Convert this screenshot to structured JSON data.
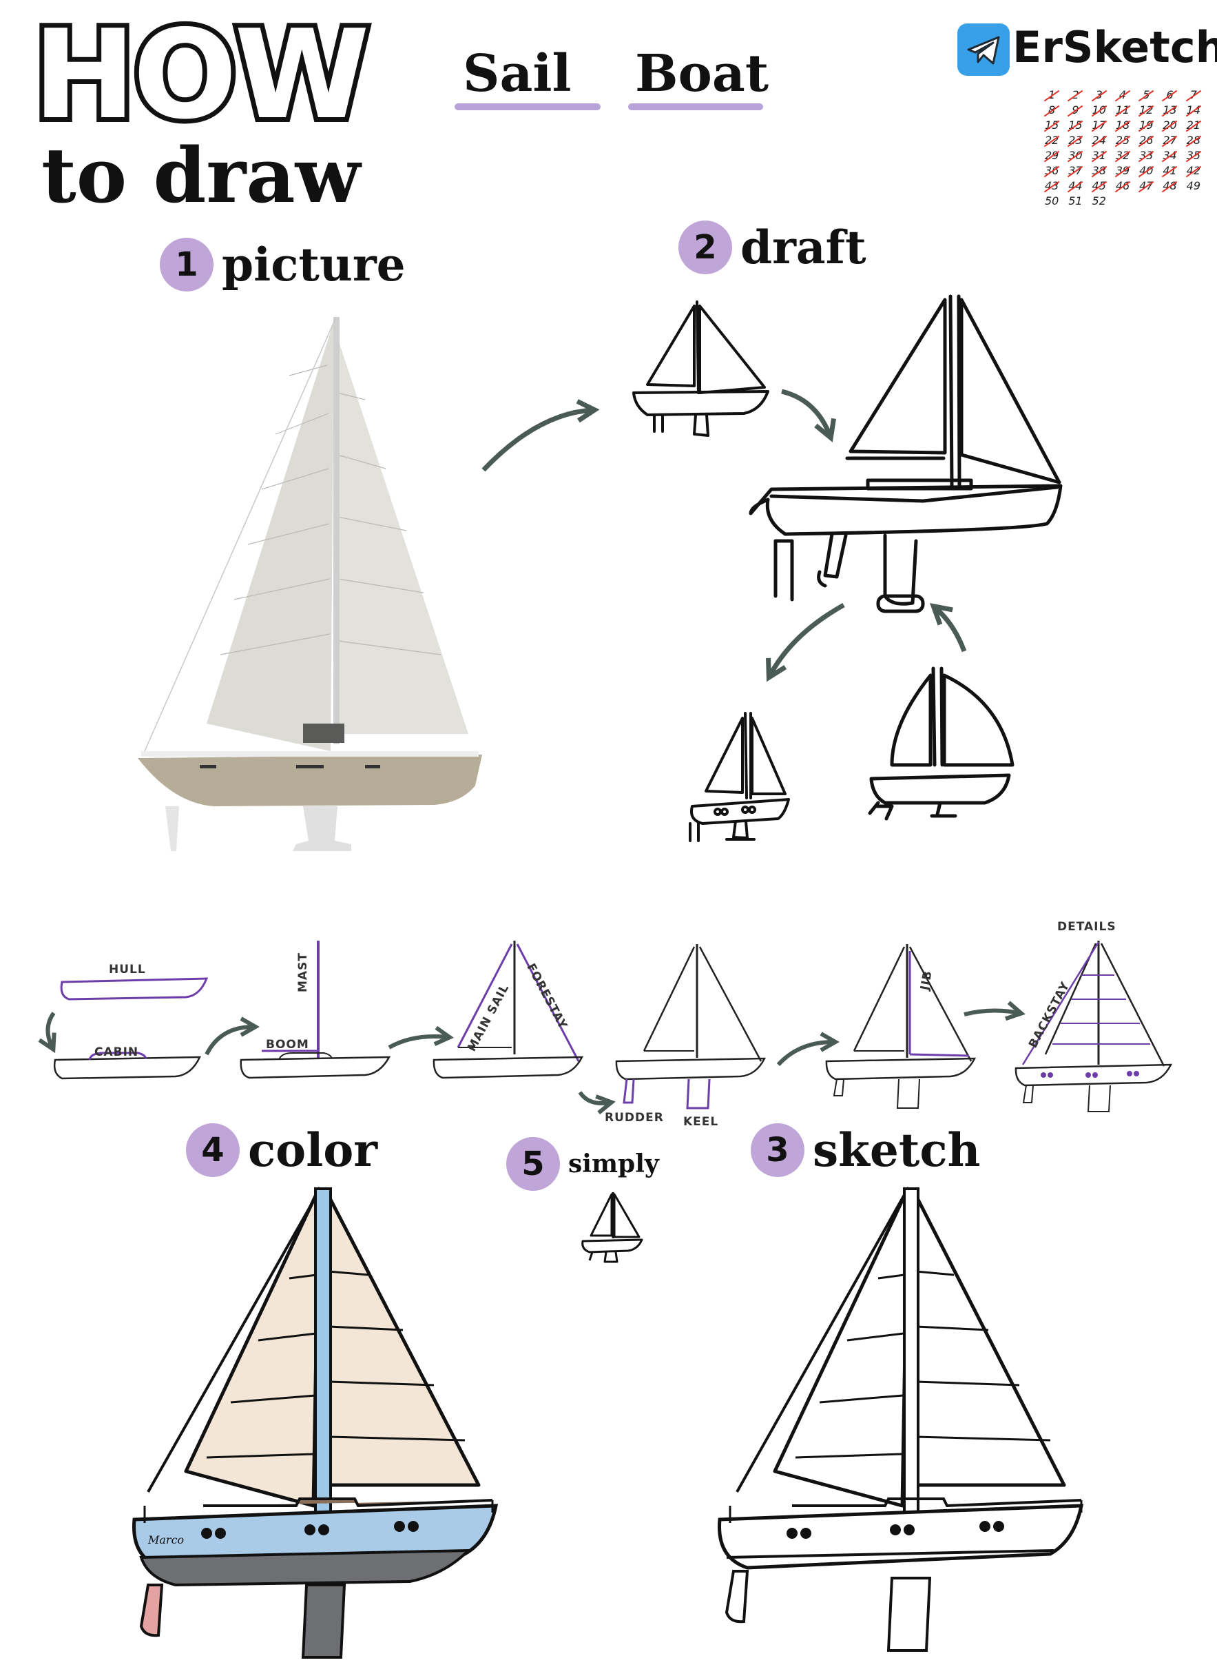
{
  "header": {
    "title_how": "HOW",
    "title_to_draw": "to draw",
    "subject_word1": "Sail",
    "subject_word2": "Boat",
    "brand": "ErSketch",
    "brand_icon": "telegram-icon"
  },
  "calendar": {
    "weeks": [
      "1",
      "2",
      "3",
      "4",
      "5",
      "6",
      "7",
      "8",
      "9",
      "10",
      "11",
      "12",
      "13",
      "14",
      "15",
      "15",
      "17",
      "18",
      "19",
      "20",
      "21",
      "22",
      "23",
      "24",
      "25",
      "26",
      "27",
      "28",
      "29",
      "30",
      "31",
      "32",
      "33",
      "34",
      "35",
      "36",
      "37",
      "38",
      "39",
      "40",
      "41",
      "42",
      "43",
      "44",
      "45",
      "46",
      "47",
      "48",
      "49",
      "50",
      "51",
      "52"
    ],
    "done_count": 48,
    "strike_color": "#e0332b"
  },
  "steps": {
    "s1": {
      "number": "1",
      "label": "picture"
    },
    "s2": {
      "number": "2",
      "label": "draft"
    },
    "s3": {
      "number": "3",
      "label": "sketch"
    },
    "s4": {
      "number": "4",
      "label": "color"
    },
    "s5": {
      "number": "5",
      "label": "simply"
    }
  },
  "parts": {
    "hull": "HULL",
    "cabin": "CABIN",
    "boom": "BOOM",
    "mast": "MAST",
    "main_sail": "MAIN SAIL",
    "forestay": "FORESTAY",
    "rudder": "RUDDER",
    "keel": "KEEL",
    "jib": "JIB",
    "backstay": "BACKSTAY",
    "details": "DETAILS"
  },
  "colors": {
    "accent": "#c0a6d8",
    "purple_line": "#7a45b8",
    "arrow": "#4a5a55",
    "sail_cream": "#f3e6d6",
    "hull_blue": "#a9cbe8",
    "hull_grey": "#6d6f72",
    "rudder_pink": "#e3a3a0",
    "photo_hull": "#b5ad98",
    "photo_sail": "#d9d8d3"
  },
  "boat_name": "Marco"
}
